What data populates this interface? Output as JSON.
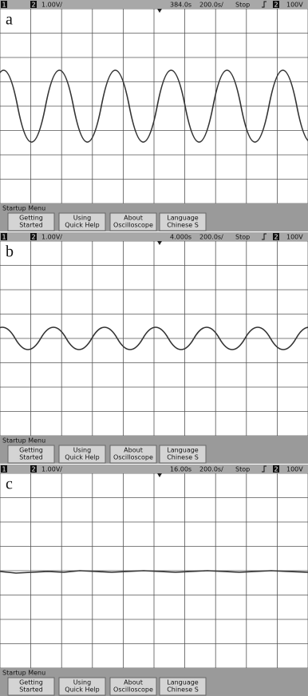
{
  "panels": [
    {
      "label": "a",
      "header": {
        "ch1": "1",
        "ch2": "2",
        "scale": "1.00V/",
        "delay": "384.0s",
        "timebase": "200.0s/",
        "status": "Stop",
        "trigger_source": "2",
        "trigger_level": "100V"
      },
      "menu": {
        "title": "Startup Menu",
        "buttons": [
          [
            "Getting",
            "Started"
          ],
          [
            "Using",
            "Quick Help"
          ],
          [
            "About",
            "Oscilloscope"
          ],
          [
            "Language",
            "Chinese S"
          ]
        ]
      }
    },
    {
      "label": "b",
      "header": {
        "ch1": "1",
        "ch2": "2",
        "scale": "1.00V/",
        "delay": "4.000s",
        "timebase": "200.0s/",
        "status": "Stop",
        "trigger_source": "2",
        "trigger_level": "100V"
      },
      "menu": {
        "title": "Startup Menu",
        "buttons": [
          [
            "Getting",
            "Started"
          ],
          [
            "Using",
            "Quick Help"
          ],
          [
            "About",
            "Oscilloscope"
          ],
          [
            "Language",
            "Chinese S"
          ]
        ]
      }
    },
    {
      "label": "c",
      "header": {
        "ch1": "1",
        "ch2": "2",
        "scale": "1.00V/",
        "delay": "16.00s",
        "timebase": "200.0s/",
        "status": "Stop",
        "trigger_source": "2",
        "trigger_level": "100V"
      },
      "menu": {
        "title": "Startup Menu",
        "buttons": [
          [
            "Getting",
            "Started"
          ],
          [
            "Using",
            "Quick Help"
          ],
          [
            "About",
            "Oscilloscope"
          ],
          [
            "Language",
            "Chinese S"
          ]
        ]
      }
    }
  ]
}
